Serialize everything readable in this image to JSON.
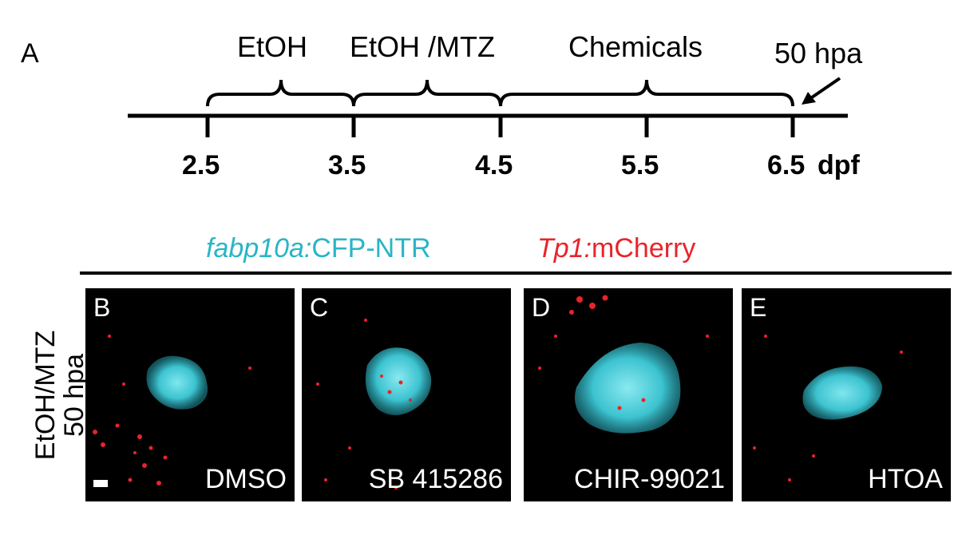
{
  "panel_a": {
    "letter": "A",
    "treatments": [
      "EtOH",
      "EtOH /MTZ",
      "Chemicals"
    ],
    "ticks": [
      "2.5",
      "3.5",
      "4.5",
      "5.5",
      "6.5"
    ],
    "unit": "dpf",
    "endpoint": "50 hpa"
  },
  "legend": {
    "cyan_italic": "fabp10a:",
    "cyan_rest": "CFP-NTR",
    "red_italic": "Tp1:",
    "red_rest": "mCherry"
  },
  "row_label": {
    "line1": "EtOH/MTZ",
    "line2": "50 hpa"
  },
  "panels": [
    {
      "letter": "B",
      "drug": "DMSO"
    },
    {
      "letter": "C",
      "drug": "SB 415286"
    },
    {
      "letter": "D",
      "drug": "CHIR-99021"
    },
    {
      "letter": "E",
      "drug": "HTOA"
    }
  ],
  "colors": {
    "cfp": "#2ab5c6",
    "mcherry": "#e8242a"
  }
}
